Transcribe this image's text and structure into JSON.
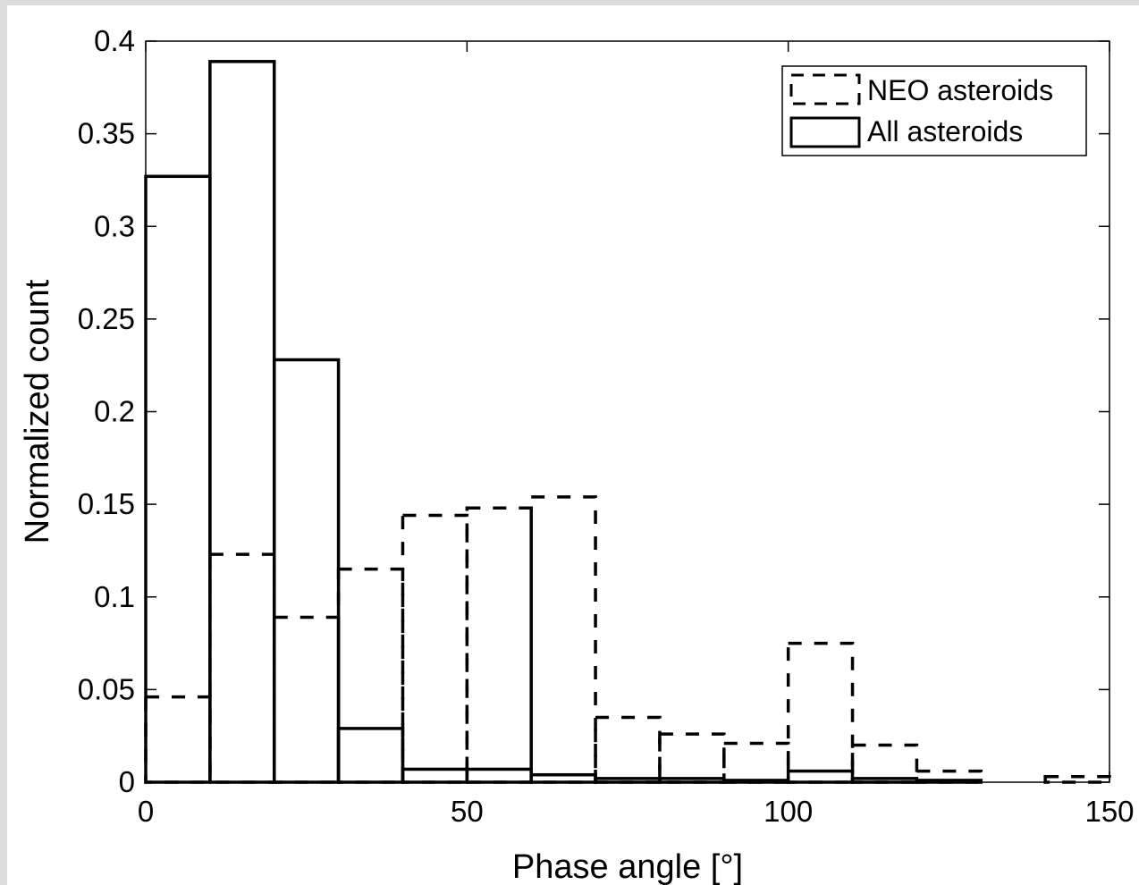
{
  "chart_data": {
    "type": "bar",
    "title": "",
    "xlabel": "Phase angle [°]",
    "ylabel": "Normalized count",
    "xlim": [
      0,
      150
    ],
    "ylim": [
      0,
      0.4
    ],
    "bin_edges": [
      0,
      10,
      20,
      30,
      40,
      50,
      60,
      70,
      80,
      90,
      100,
      110,
      120,
      130,
      140,
      150
    ],
    "x_ticks": [
      "0",
      "50",
      "100",
      "150"
    ],
    "x_tick_values": [
      0,
      50,
      100,
      150
    ],
    "y_ticks": [
      "0",
      "0.05",
      "0.1",
      "0.15",
      "0.2",
      "0.25",
      "0.3",
      "0.35",
      "0.4"
    ],
    "y_tick_values": [
      0,
      0.05,
      0.1,
      0.15,
      0.2,
      0.25,
      0.3,
      0.35,
      0.4
    ],
    "legend_position": "top-right",
    "grid": false,
    "series": [
      {
        "name": "NEO asteroids",
        "line_style": "dashed",
        "values": [
          0.046,
          0.123,
          0.089,
          0.115,
          0.144,
          0.148,
          0.154,
          0.035,
          0.026,
          0.021,
          0.075,
          0.02,
          0.006,
          0.0,
          0.003
        ]
      },
      {
        "name": "All asteroids",
        "line_style": "solid",
        "values": [
          0.327,
          0.389,
          0.228,
          0.029,
          0.007,
          0.007,
          0.004,
          0.002,
          0.002,
          0.001,
          0.006,
          0.002,
          0.001,
          0.0,
          0.0
        ]
      }
    ]
  }
}
